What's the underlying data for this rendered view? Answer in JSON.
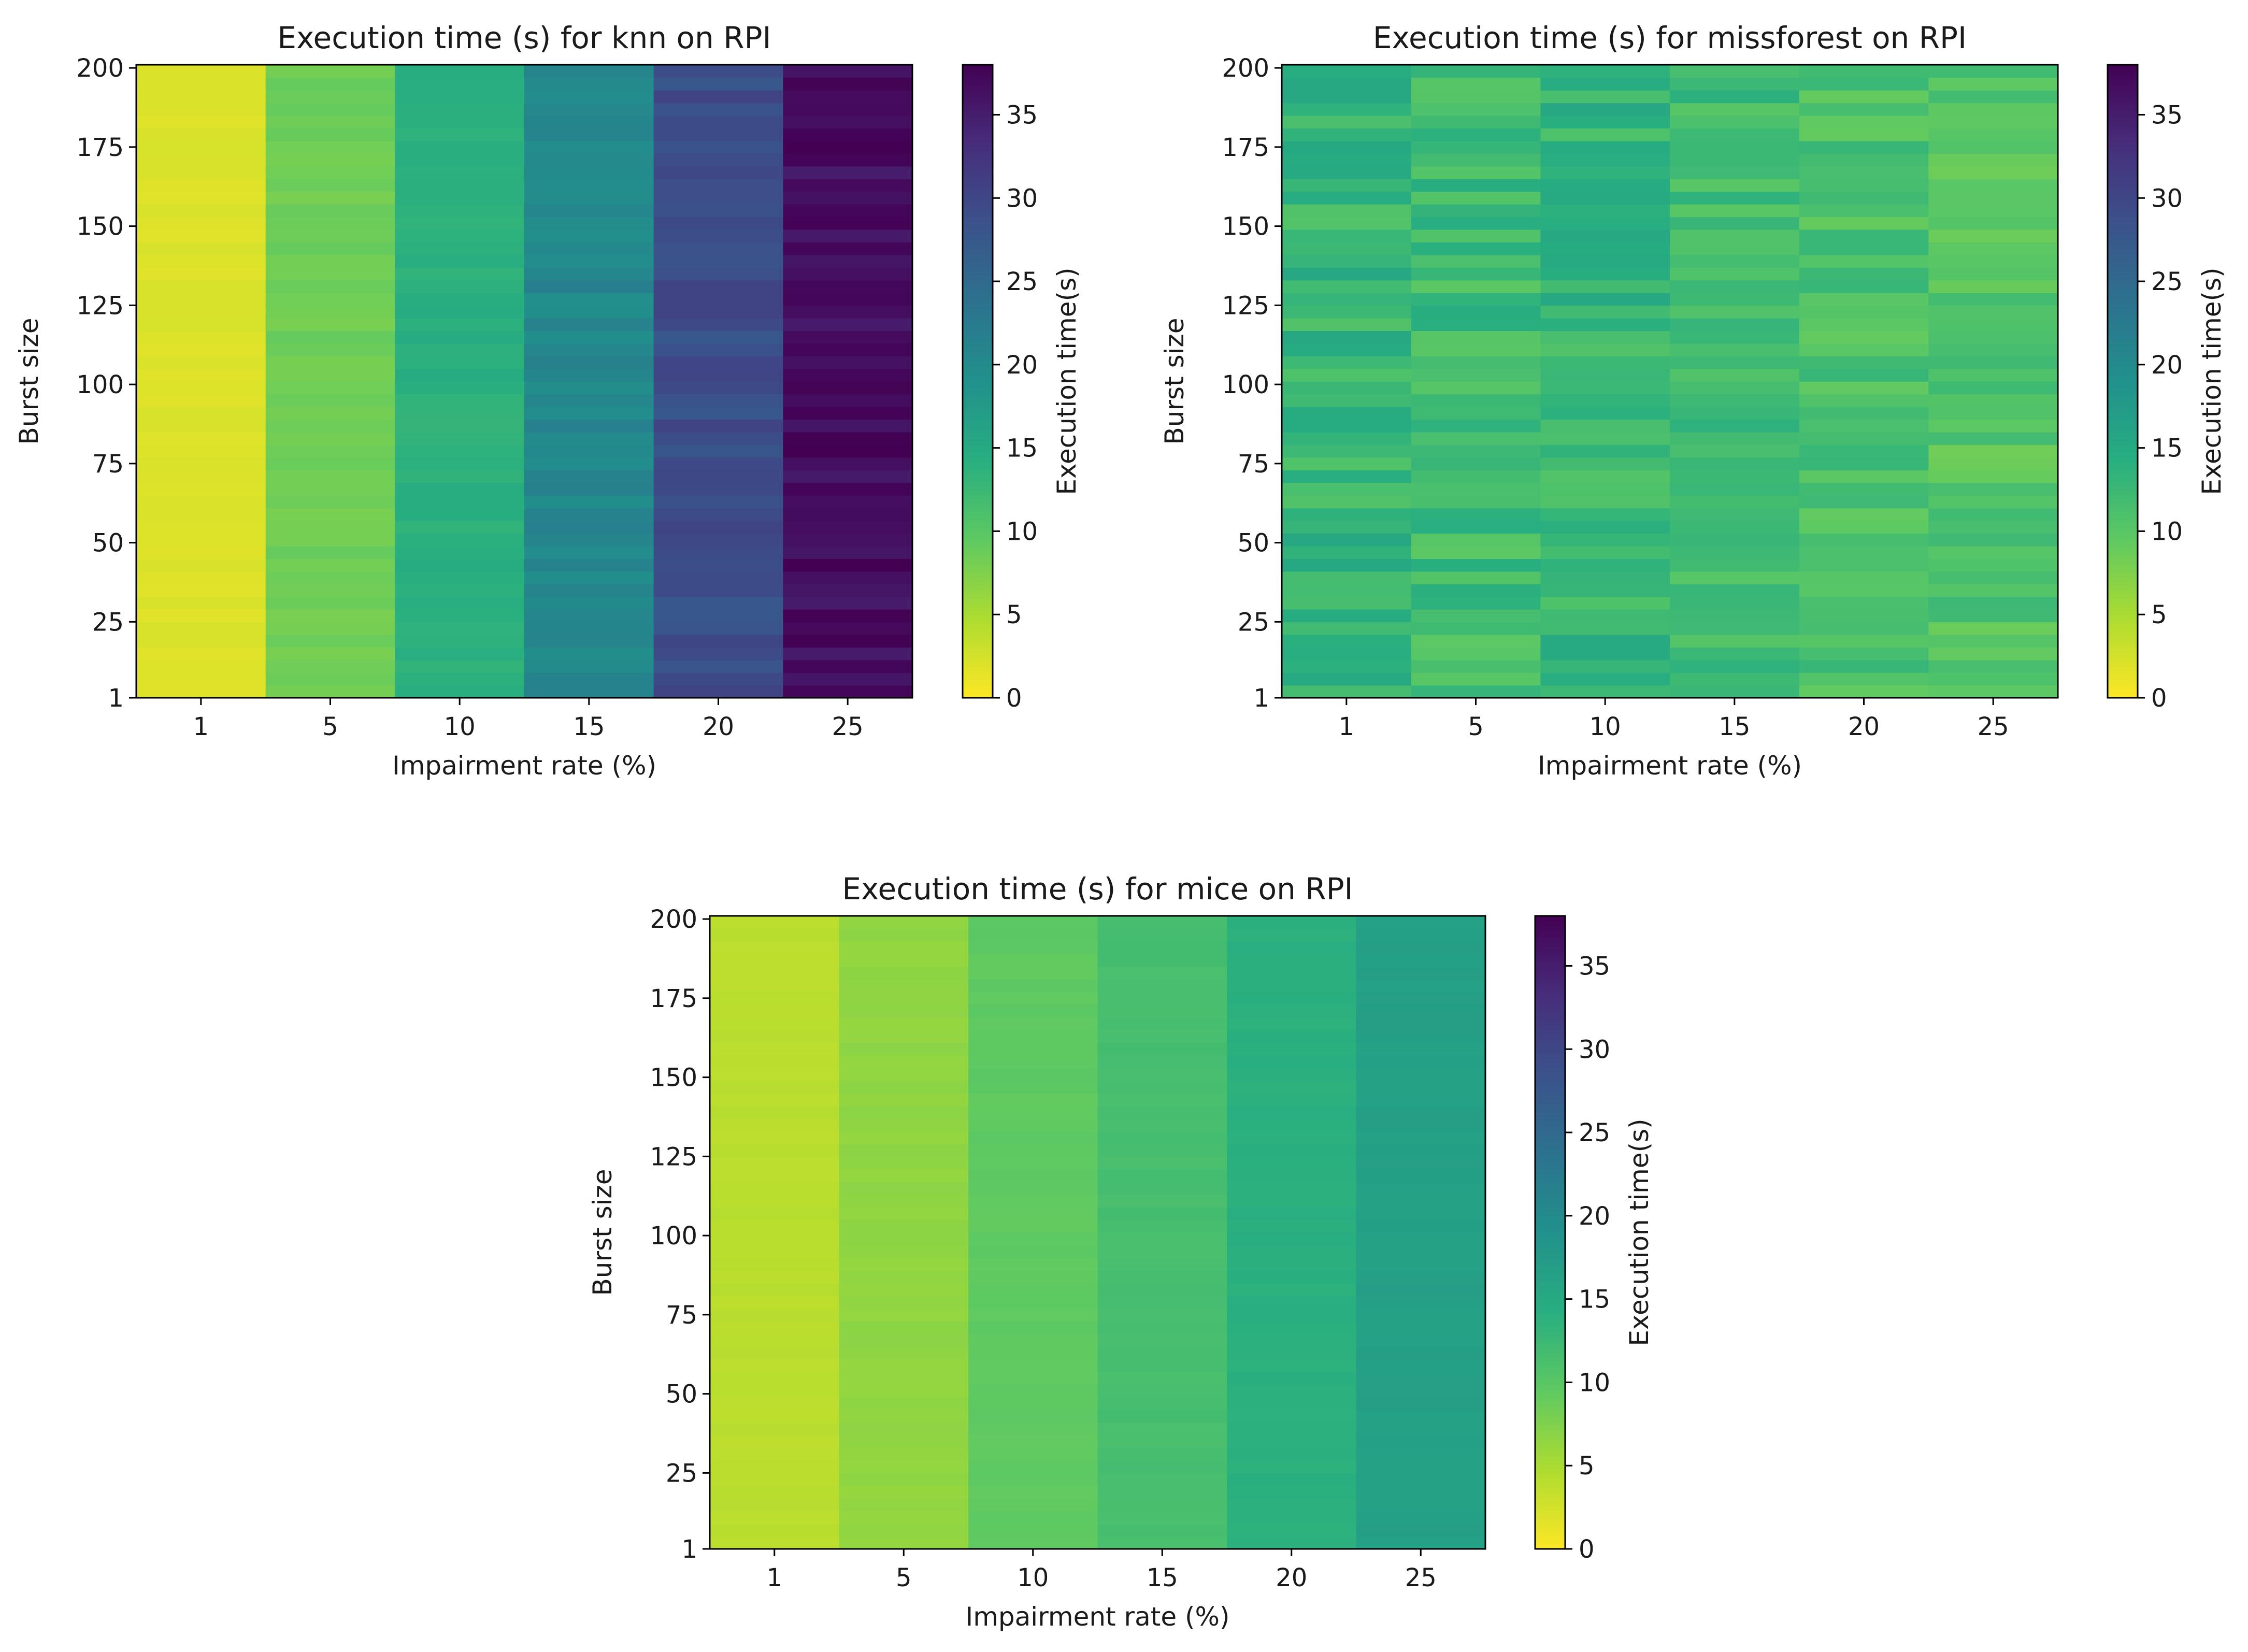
{
  "figure": {
    "colormap": "viridis_r",
    "background": "#ffffff"
  },
  "chart_data": [
    {
      "type": "heatmap",
      "title": "Execution time (s) for knn on RPI",
      "xlabel": "Impairment rate (%)",
      "ylabel": "Burst size",
      "x_categories": [
        "1",
        "5",
        "10",
        "15",
        "20",
        "25"
      ],
      "y_range": [
        1,
        201
      ],
      "y_ticks": [
        "1",
        "25",
        "50",
        "75",
        "100",
        "125",
        "150",
        "175",
        "200"
      ],
      "colorbar": {
        "label": "Execution time(s)",
        "range": [
          0,
          38
        ],
        "ticks": [
          "0",
          "5",
          "10",
          "15",
          "20",
          "25",
          "30",
          "35"
        ]
      },
      "column_base_values": [
        2.0,
        8.5,
        14.0,
        20.5,
        29.0,
        36.5
      ],
      "row_variation": [
        0.3,
        0.6,
        0.8,
        1.2,
        1.5,
        1.5
      ],
      "seed": 11
    },
    {
      "type": "heatmap",
      "title": "Execution time (s) for missforest on RPI",
      "xlabel": "Impairment rate (%)",
      "ylabel": "Burst size",
      "x_categories": [
        "1",
        "5",
        "10",
        "15",
        "20",
        "25"
      ],
      "y_range": [
        1,
        201
      ],
      "y_ticks": [
        "1",
        "25",
        "50",
        "75",
        "100",
        "125",
        "150",
        "175",
        "200"
      ],
      "colorbar": {
        "label": "Execution time(s)",
        "range": [
          0,
          38
        ],
        "ticks": [
          "0",
          "5",
          "10",
          "15",
          "20",
          "25",
          "30",
          "35"
        ]
      },
      "column_base_values": [
        13.0,
        12.0,
        13.0,
        12.0,
        11.0,
        10.5
      ],
      "row_variation": [
        2.5,
        2.5,
        2.5,
        2.0,
        2.0,
        2.0
      ],
      "seed": 29
    },
    {
      "type": "heatmap",
      "title": "Execution time (s) for mice on RPI",
      "xlabel": "Impairment rate (%)",
      "ylabel": "Burst size",
      "x_categories": [
        "1",
        "5",
        "10",
        "15",
        "20",
        "25"
      ],
      "y_range": [
        1,
        201
      ],
      "y_ticks": [
        "1",
        "25",
        "50",
        "75",
        "100",
        "125",
        "150",
        "175",
        "200"
      ],
      "colorbar": {
        "label": "Execution time(s)",
        "range": [
          0,
          38
        ],
        "ticks": [
          "0",
          "5",
          "10",
          "15",
          "20",
          "25",
          "30",
          "35"
        ]
      },
      "column_base_values": [
        4.0,
        6.5,
        9.5,
        11.5,
        14.0,
        16.5
      ],
      "row_variation": [
        0.3,
        0.3,
        0.3,
        0.3,
        0.3,
        0.3
      ],
      "seed": 5
    }
  ]
}
